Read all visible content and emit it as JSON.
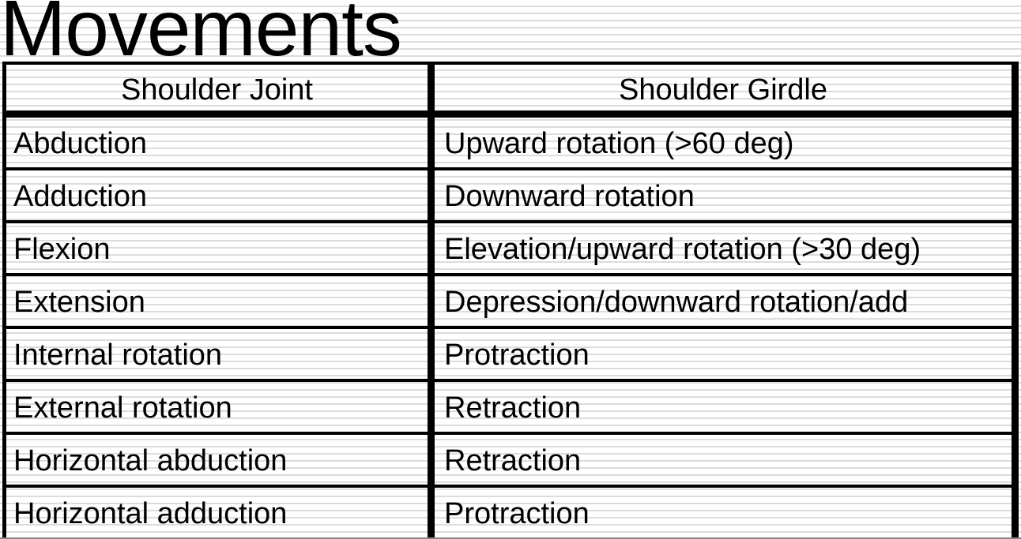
{
  "slide_title": "Movements",
  "table": {
    "headers": [
      "Shoulder Joint",
      "Shoulder Girdle"
    ],
    "rows": [
      [
        "Abduction",
        "Upward rotation (>60 deg)"
      ],
      [
        "Adduction",
        "Downward rotation"
      ],
      [
        "Flexion",
        "Elevation/upward rotation (>30 deg)"
      ],
      [
        "Extension",
        "Depression/downward rotation/add"
      ],
      [
        "Internal rotation",
        "Protraction"
      ],
      [
        "External rotation",
        "Retraction"
      ],
      [
        "Horizontal abduction",
        "Retraction"
      ],
      [
        "Horizontal adduction",
        "Protraction"
      ]
    ]
  }
}
